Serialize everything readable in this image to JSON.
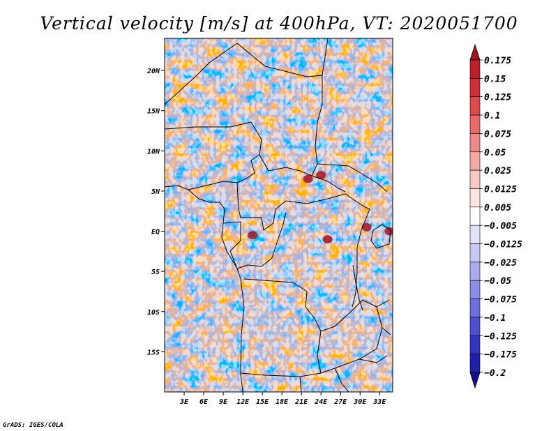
{
  "chart_data": {
    "type": "heatmap",
    "title": "Vertical velocity [m/s] at 400hPa, VT: 2020051700",
    "variable": "Vertical velocity",
    "units": "m/s",
    "level": "400hPa",
    "valid_time": "2020051700",
    "x_range": [
      0,
      35
    ],
    "y_range": [
      -20,
      24
    ],
    "x_ticks": [
      {
        "value": 3,
        "label": "3E"
      },
      {
        "value": 6,
        "label": "6E"
      },
      {
        "value": 9,
        "label": "9E"
      },
      {
        "value": 12,
        "label": "12E"
      },
      {
        "value": 15,
        "label": "15E"
      },
      {
        "value": 18,
        "label": "18E"
      },
      {
        "value": 21,
        "label": "21E"
      },
      {
        "value": 24,
        "label": "24E"
      },
      {
        "value": 27,
        "label": "27E"
      },
      {
        "value": 30,
        "label": "30E"
      },
      {
        "value": 33,
        "label": "33E"
      }
    ],
    "y_ticks": [
      {
        "value": 20,
        "label": "20N"
      },
      {
        "value": 15,
        "label": "15N"
      },
      {
        "value": 10,
        "label": "10N"
      },
      {
        "value": 5,
        "label": "5N"
      },
      {
        "value": 0,
        "label": "EQ"
      },
      {
        "value": -5,
        "label": "5S"
      },
      {
        "value": -10,
        "label": "10S"
      },
      {
        "value": -15,
        "label": "15S"
      }
    ],
    "colorbar": {
      "levels": [
        "0.175",
        "0.15",
        "0.125",
        "0.1",
        "0.075",
        "0.05",
        "0.025",
        "0.0125",
        "0.005",
        "−0.005",
        "−0.0125",
        "−0.025",
        "−0.05",
        "−0.075",
        "−0.1",
        "−0.125",
        "−0.175",
        "−0.2"
      ],
      "colors": [
        "#a01420",
        "#b8202a",
        "#cc3038",
        "#dc4a4e",
        "#e66a6a",
        "#ee8a88",
        "#f4aaa6",
        "#f8c8c4",
        "#fce4e2",
        "#ffffff",
        "#e2e2fa",
        "#c8c8f4",
        "#aaaaee",
        "#8c8ce6",
        "#6e6edc",
        "#5050cc",
        "#3434bc",
        "#2020a8",
        "#140e90"
      ]
    },
    "features": [
      {
        "label": "strong ascent",
        "lon": 24,
        "lat": 7
      },
      {
        "label": "strong ascent",
        "lon": 22,
        "lat": 6.5
      },
      {
        "label": "strong ascent",
        "lon": 34.5,
        "lat": 0
      },
      {
        "label": "strong ascent",
        "lon": 31,
        "lat": 0.5
      },
      {
        "label": "strong ascent",
        "lon": 13.5,
        "lat": -0.5
      },
      {
        "label": "strong ascent",
        "lon": 25,
        "lat": -1
      }
    ],
    "credit": "GrADS: IGES/COLA"
  }
}
